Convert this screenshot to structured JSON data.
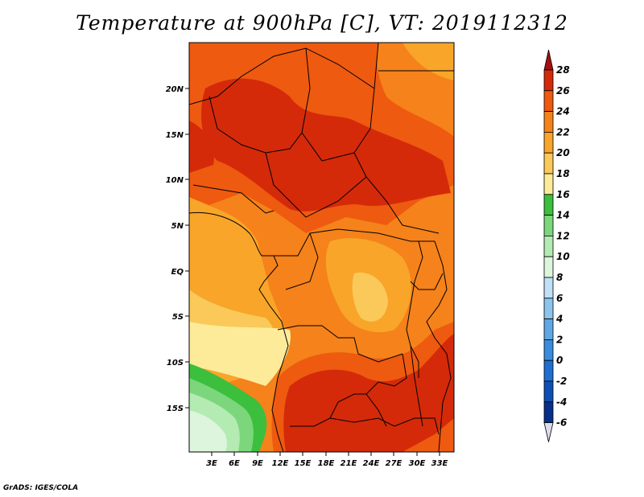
{
  "title": "Temperature at 900hPa [C], VT: 2019112312",
  "credit": "GrADS: IGES/COLA",
  "map": {
    "lat_ticks": [
      "20N",
      "15N",
      "10N",
      "5N",
      "EQ",
      "5S",
      "10S",
      "15S"
    ],
    "lon_ticks": [
      "3E",
      "6E",
      "9E",
      "12E",
      "15E",
      "18E",
      "21E",
      "24E",
      "27E",
      "30E",
      "33E"
    ]
  },
  "colorbar": {
    "labels": [
      "28",
      "26",
      "24",
      "22",
      "20",
      "18",
      "16",
      "14",
      "12",
      "10",
      "8",
      "6",
      "4",
      "2",
      "0",
      "-2",
      "-4",
      "-6"
    ],
    "colors": [
      "#a50f0f",
      "#d42a0a",
      "#ee5a10",
      "#f5821a",
      "#f8a52a",
      "#fac95a",
      "#fdeb9a",
      "#3cbf3c",
      "#7cd67c",
      "#b3ebb3",
      "#dcf5dc",
      "#bfe0f5",
      "#8cc4ec",
      "#5fa8e4",
      "#3a8ddc",
      "#1f6fd0",
      "#0d4fb5",
      "#062f8a",
      "#000a5a",
      "#dcdcf0"
    ]
  }
}
